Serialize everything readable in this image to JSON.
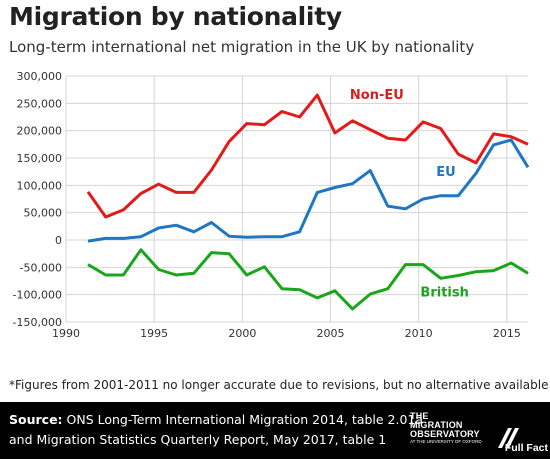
{
  "header": {
    "title": "Migration by nationality",
    "subtitle": "Long-term international net migration in the UK by nationality"
  },
  "chart_data": {
    "type": "line",
    "title": "Migration by nationality",
    "subtitle": "Long-term international net migration in the UK by nationality",
    "xlim": [
      1990,
      2016.2
    ],
    "ylim": [
      -150000,
      300000
    ],
    "x_ticks": [
      1990,
      1995,
      2000,
      2005,
      2010,
      2015
    ],
    "x_tick_labels": [
      "1990",
      "1995",
      "2000",
      "2005",
      "2010",
      "2015"
    ],
    "y_ticks": [
      300000,
      250000,
      200000,
      150000,
      100000,
      50000,
      0,
      -50000,
      -100000,
      -150000
    ],
    "y_tick_labels": [
      "300,000",
      "250,000",
      "200,000",
      "150,000",
      "100,000",
      "50,000",
      "0",
      "-50,000",
      "-100,000",
      "-150,000"
    ],
    "grid": true,
    "legend": "inline labels",
    "series": [
      {
        "name": "Non-EU",
        "color": "#e21a1a",
        "label_x": 2006.1,
        "label_y": 258000,
        "points": [
          [
            1991.25,
            88000
          ],
          [
            1992.25,
            42000
          ],
          [
            1993.25,
            55000
          ],
          [
            1994.25,
            85000
          ],
          [
            1995.25,
            102000
          ],
          [
            1996.25,
            87000
          ],
          [
            1997.25,
            87000
          ],
          [
            1998.25,
            128000
          ],
          [
            1999.25,
            180000
          ],
          [
            2000.25,
            213000
          ],
          [
            2001.25,
            211000
          ],
          [
            2002.25,
            235000
          ],
          [
            2003.25,
            225000
          ],
          [
            2004.25,
            265000
          ],
          [
            2005.25,
            196000
          ],
          [
            2006.25,
            218000
          ],
          [
            2007.25,
            202000
          ],
          [
            2008.25,
            186000
          ],
          [
            2009.25,
            183000
          ],
          [
            2010.25,
            216000
          ],
          [
            2011.25,
            204000
          ],
          [
            2012.25,
            157000
          ],
          [
            2013.25,
            141000
          ],
          [
            2014.25,
            194000
          ],
          [
            2015.25,
            189000
          ],
          [
            2016.2,
            175000
          ]
        ]
      },
      {
        "name": "EU",
        "color": "#1f77c4",
        "label_x": 2011.0,
        "label_y": 117000,
        "points": [
          [
            1991.25,
            -2000
          ],
          [
            1992.25,
            3000
          ],
          [
            1993.25,
            3000
          ],
          [
            1994.25,
            6000
          ],
          [
            1995.25,
            22000
          ],
          [
            1996.25,
            27000
          ],
          [
            1997.25,
            15000
          ],
          [
            1998.25,
            32000
          ],
          [
            1999.25,
            7000
          ],
          [
            2000.25,
            5000
          ],
          [
            2001.25,
            6000
          ],
          [
            2002.25,
            6000
          ],
          [
            2003.25,
            15000
          ],
          [
            2004.25,
            87000
          ],
          [
            2005.25,
            96000
          ],
          [
            2006.25,
            103000
          ],
          [
            2007.25,
            127000
          ],
          [
            2008.25,
            62000
          ],
          [
            2009.25,
            57000
          ],
          [
            2010.25,
            75000
          ],
          [
            2011.25,
            81000
          ],
          [
            2012.25,
            81000
          ],
          [
            2013.25,
            122000
          ],
          [
            2014.25,
            174000
          ],
          [
            2015.25,
            183000
          ],
          [
            2016.2,
            133000
          ]
        ]
      },
      {
        "name": "British",
        "color": "#1aa51a",
        "label_x": 2010.1,
        "label_y": -103000,
        "points": [
          [
            1991.25,
            -45000
          ],
          [
            1992.25,
            -64000
          ],
          [
            1993.25,
            -64000
          ],
          [
            1994.25,
            -18000
          ],
          [
            1995.25,
            -54000
          ],
          [
            1996.25,
            -64000
          ],
          [
            1997.25,
            -61000
          ],
          [
            1998.25,
            -23000
          ],
          [
            1999.25,
            -25000
          ],
          [
            2000.25,
            -64000
          ],
          [
            2001.25,
            -49000
          ],
          [
            2002.25,
            -89000
          ],
          [
            2003.25,
            -91000
          ],
          [
            2004.25,
            -106000
          ],
          [
            2005.25,
            -93000
          ],
          [
            2006.25,
            -126000
          ],
          [
            2007.25,
            -99000
          ],
          [
            2008.25,
            -89000
          ],
          [
            2009.25,
            -45000
          ],
          [
            2010.25,
            -45000
          ],
          [
            2011.25,
            -70000
          ],
          [
            2012.25,
            -65000
          ],
          [
            2013.25,
            -58000
          ],
          [
            2014.25,
            -56000
          ],
          [
            2015.25,
            -42000
          ],
          [
            2016.2,
            -61000
          ]
        ]
      }
    ]
  },
  "footnote": "*Figures from 2001-2011 no longer accurate due to revisions, but no alternative available",
  "footer": {
    "source_label": "Source:",
    "source_line1": " ONS Long-Term International Migration 2014, table 2.01a",
    "source_line2": "and Migration Statistics Quarterly Report, May 2017, table 1",
    "logo_mo_line1": "THE",
    "logo_mo_line2": "MIGRATION",
    "logo_mo_line3": "OBSERVATORY",
    "logo_mo_line4": "AT THE UNIVERSITY OF OXFORD",
    "logo_ff": "Full Fact"
  }
}
